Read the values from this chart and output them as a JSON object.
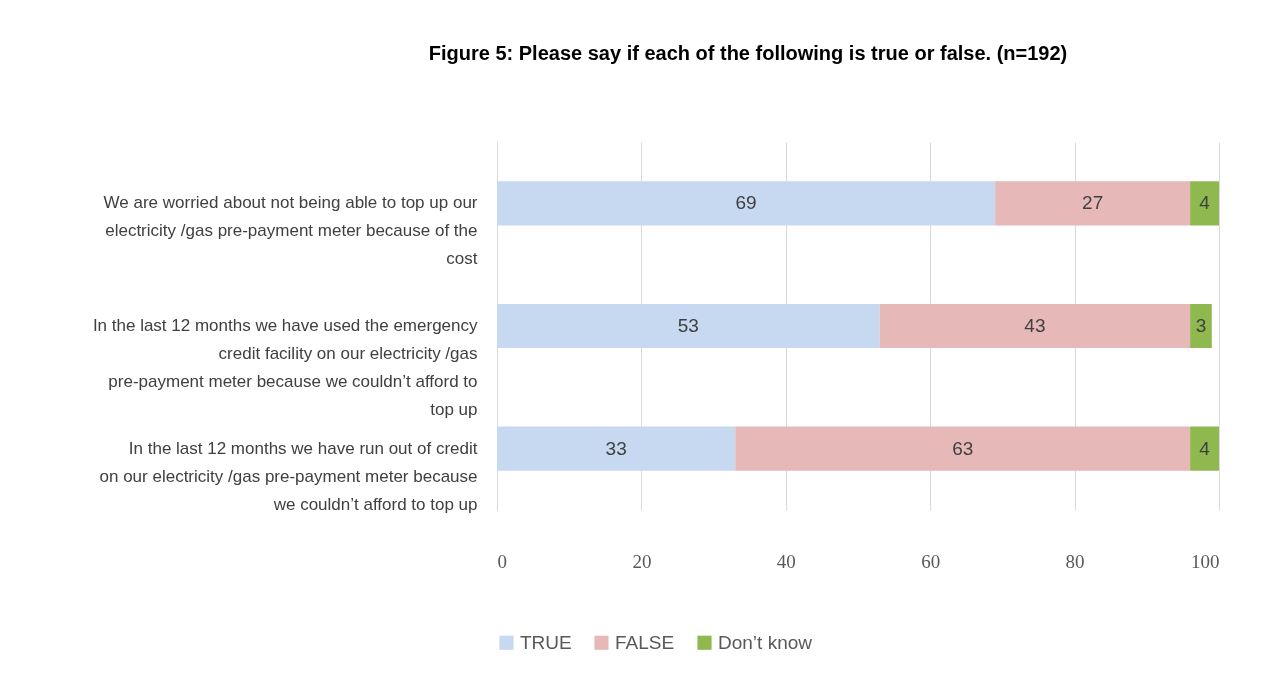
{
  "chart_data": {
    "type": "bar",
    "orientation": "horizontal",
    "stacked": true,
    "title": "Figure 5: Please say if each of the following is true or false. (n=192)",
    "categories": [
      "We are worried about not being able to top up our electricity /gas pre-payment meter because of the cost",
      "In the last 12 months we have used the emergency credit facility on our electricity /gas pre-payment meter because we couldn’t afford to top up",
      "In the last 12 months we have run out of credit on our electricity /gas pre-payment meter because we couldn’t afford to top up"
    ],
    "series": [
      {
        "name": "TRUE",
        "color": "#c6d9f1",
        "values": [
          69,
          53,
          33
        ]
      },
      {
        "name": "FALSE",
        "color": "#e6b9b8",
        "values": [
          27,
          43,
          63
        ]
      },
      {
        "name": "Don’t know",
        "color": "#8fb84f",
        "values": [
          4,
          3,
          4
        ]
      }
    ],
    "xlim": [
      0,
      100
    ],
    "xticks": [
      0,
      20,
      40,
      60,
      80,
      100
    ],
    "grid": "x",
    "legend": "bottom",
    "data_labels": true
  }
}
